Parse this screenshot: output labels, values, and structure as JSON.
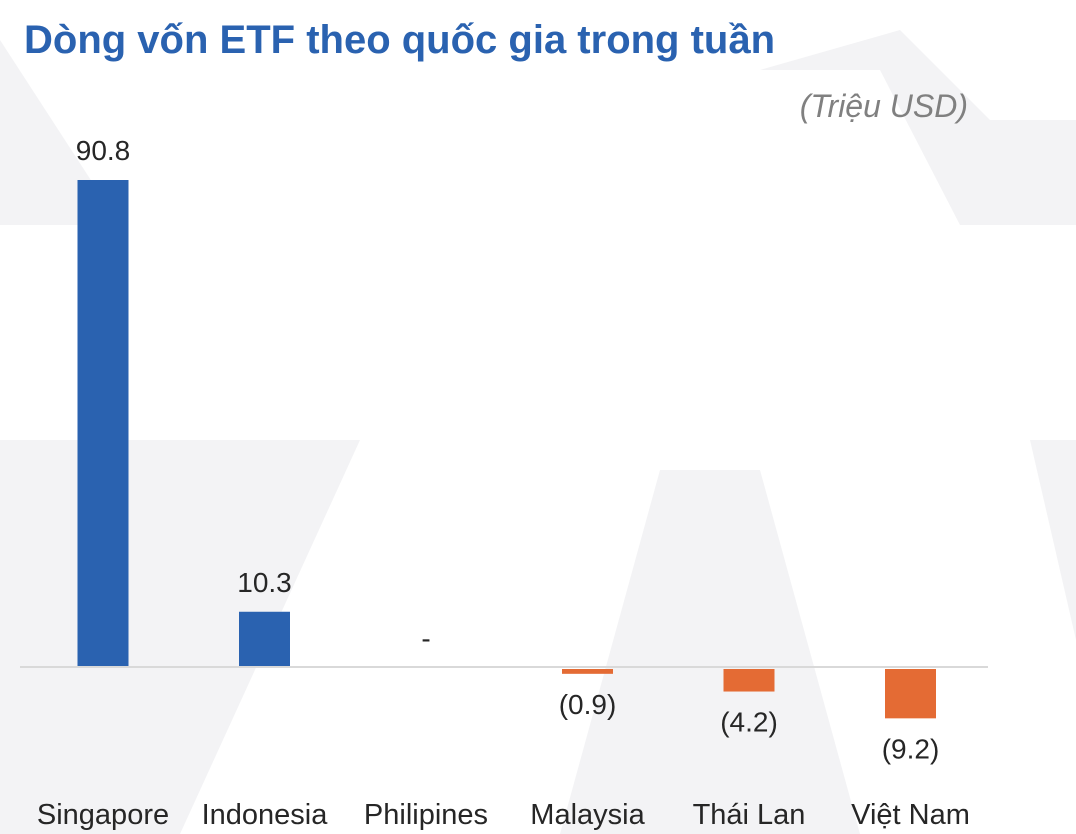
{
  "title": "Dòng vốn ETF theo quốc gia trong tuần",
  "unit_label": "(Triệu USD)",
  "colors": {
    "title": "#2a62b0",
    "positive": "#2a62b0",
    "negative": "#e46b34",
    "axis": "#d9d9d9",
    "label": "#262626",
    "watermark": "#f3f3f5"
  },
  "chart_data": {
    "type": "bar",
    "title": "Dòng vốn ETF theo quốc gia trong tuần",
    "ylabel": "",
    "xlabel": "",
    "unit": "(Triệu USD)",
    "grid": false,
    "legend": "none",
    "categories": [
      "Singapore",
      "Indonesia",
      "Philipines",
      "Malaysia",
      "Thái Lan",
      "Việt Nam"
    ],
    "values": [
      90.8,
      10.3,
      0,
      -0.9,
      -4.2,
      -9.2
    ],
    "data_labels": [
      "90.8",
      "10.3",
      "-",
      "(0.9)",
      "(4.2)",
      "(9.2)"
    ]
  }
}
